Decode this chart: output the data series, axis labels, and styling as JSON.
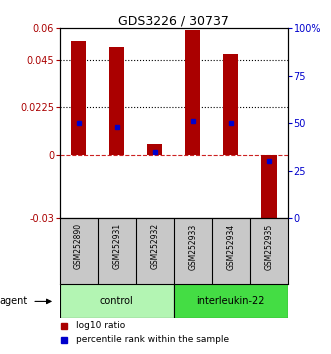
{
  "title": "GDS3226 / 30737",
  "samples": [
    "GSM252890",
    "GSM252931",
    "GSM252932",
    "GSM252933",
    "GSM252934",
    "GSM252935"
  ],
  "log10_ratio": [
    0.054,
    0.051,
    0.005,
    0.059,
    0.048,
    -0.032
  ],
  "percentile_rank_pct": [
    50,
    48,
    35,
    51,
    50,
    30
  ],
  "groups": [
    {
      "label": "control",
      "indices": [
        0,
        1,
        2
      ],
      "color": "#b3f5b3"
    },
    {
      "label": "interleukin-22",
      "indices": [
        3,
        4,
        5
      ],
      "color": "#44dd44"
    }
  ],
  "ylim_left": [
    -0.03,
    0.06
  ],
  "ylim_right": [
    0,
    100
  ],
  "yticks_left": [
    -0.03,
    0,
    0.0225,
    0.045,
    0.06
  ],
  "yticks_right": [
    0,
    25,
    50,
    75,
    100
  ],
  "ytick_labels_left": [
    "-0.03",
    "0",
    "0.0225",
    "0.045",
    "0.06"
  ],
  "ytick_labels_right": [
    "0",
    "25",
    "50",
    "75",
    "100%"
  ],
  "hlines": [
    0.045,
    0.0225
  ],
  "bar_color": "#aa0000",
  "dot_color": "#0000cc",
  "zero_line_color": "#cc2222",
  "background_color": "#ffffff",
  "plot_bg_color": "#ffffff",
  "legend_red": "log10 ratio",
  "legend_blue": "percentile rank within the sample",
  "agent_label": "agent",
  "bar_width": 0.4,
  "label_area_color": "#c8c8c8"
}
